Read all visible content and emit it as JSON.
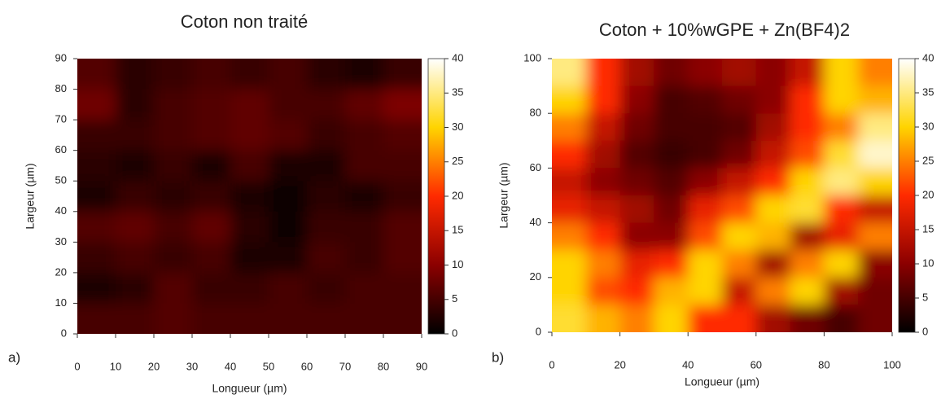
{
  "chart_data": [
    {
      "type": "heatmap",
      "title": "Coton non traité",
      "xlabel": "Longueur (µm)",
      "ylabel": "Largeur (µm)",
      "panel_label": "a)",
      "x": [
        5,
        15,
        25,
        35,
        45,
        55,
        65,
        75,
        85
      ],
      "y": [
        85,
        75,
        65,
        55,
        45,
        35,
        25,
        15,
        5
      ],
      "z": [
        [
          6,
          3,
          4,
          5,
          4,
          5,
          3,
          2,
          4
        ],
        [
          8,
          3,
          5,
          6,
          7,
          5,
          5,
          7,
          9
        ],
        [
          4,
          4,
          5,
          6,
          7,
          6,
          4,
          5,
          6
        ],
        [
          3,
          2,
          4,
          2,
          5,
          2,
          2,
          5,
          5
        ],
        [
          2,
          4,
          3,
          4,
          2,
          1,
          3,
          2,
          4
        ],
        [
          6,
          7,
          5,
          7,
          3,
          1,
          4,
          4,
          6
        ],
        [
          4,
          5,
          4,
          5,
          2,
          2,
          5,
          4,
          6
        ],
        [
          2,
          3,
          6,
          4,
          4,
          5,
          4,
          5,
          5
        ],
        [
          5,
          5,
          6,
          5,
          5,
          5,
          5,
          5,
          5
        ]
      ],
      "xlim": [
        0,
        90
      ],
      "xticks": [
        0,
        10,
        20,
        30,
        40,
        50,
        60,
        70,
        80,
        90
      ],
      "ylim": [
        0,
        90
      ],
      "yticks": [
        0,
        10,
        20,
        30,
        40,
        50,
        60,
        70,
        80,
        90
      ],
      "zlim": [
        0,
        40
      ],
      "zticks": [
        0,
        5,
        10,
        15,
        20,
        25,
        30,
        35,
        40
      ],
      "colors": [
        "#000000",
        "#8b0000",
        "#ff2a00",
        "#ffd400",
        "#ffffff"
      ]
    },
    {
      "type": "heatmap",
      "title": "Coton + 10%wGPE + Zn(BF4)2",
      "xlabel": "Longueur (µm)",
      "ylabel": "Largeur (µm)",
      "panel_label": "b)",
      "x": [
        5,
        15,
        25,
        35,
        45,
        55,
        65,
        75,
        85,
        95
      ],
      "y": [
        95,
        85,
        75,
        65,
        55,
        45,
        35,
        25,
        15,
        5
      ],
      "z": [
        [
          35,
          20,
          12,
          8,
          10,
          12,
          10,
          15,
          30,
          25
        ],
        [
          30,
          20,
          10,
          5,
          6,
          8,
          10,
          20,
          30,
          28
        ],
        [
          25,
          15,
          8,
          5,
          5,
          6,
          12,
          20,
          25,
          35
        ],
        [
          20,
          12,
          6,
          4,
          5,
          8,
          15,
          22,
          32,
          38
        ],
        [
          15,
          10,
          8,
          6,
          10,
          15,
          20,
          30,
          35,
          30
        ],
        [
          18,
          15,
          12,
          8,
          18,
          22,
          30,
          32,
          20,
          15
        ],
        [
          25,
          20,
          10,
          10,
          22,
          30,
          28,
          12,
          18,
          25
        ],
        [
          30,
          25,
          18,
          20,
          30,
          25,
          12,
          25,
          30,
          10
        ],
        [
          30,
          22,
          20,
          28,
          30,
          15,
          25,
          30,
          12,
          8
        ],
        [
          32,
          28,
          25,
          30,
          20,
          20,
          12,
          8,
          5,
          8
        ]
      ],
      "xlim": [
        0,
        100
      ],
      "xticks": [
        0,
        20,
        40,
        60,
        80,
        100
      ],
      "ylim": [
        0,
        100
      ],
      "yticks": [
        0,
        20,
        40,
        60,
        80,
        100
      ],
      "zlim": [
        0,
        40
      ],
      "zticks": [
        0,
        5,
        10,
        15,
        20,
        25,
        30,
        35,
        40
      ],
      "colors": [
        "#000000",
        "#8b0000",
        "#ff2a00",
        "#ffd400",
        "#ffffff"
      ]
    }
  ]
}
